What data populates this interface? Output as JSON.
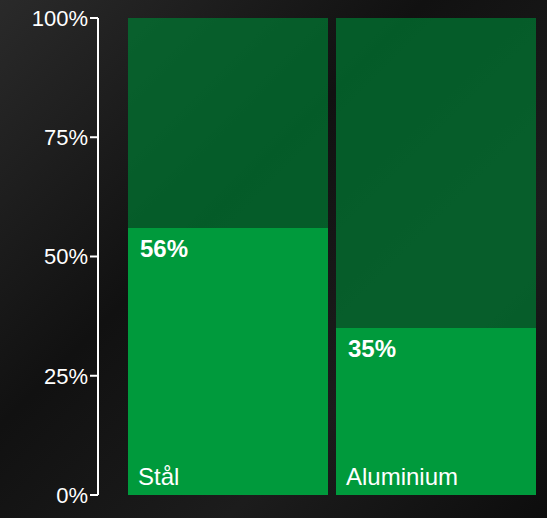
{
  "chart_data": {
    "type": "bar",
    "categories": [
      "Stål",
      "Aluminium"
    ],
    "values": [
      56,
      35
    ],
    "value_labels": [
      "56%",
      "35%"
    ],
    "color": "#009a3c",
    "ylim": [
      0,
      100
    ],
    "yticks": [
      {
        "value": 0,
        "label": "0%"
      },
      {
        "value": 25,
        "label": "25%"
      },
      {
        "value": 50,
        "label": "50%"
      },
      {
        "value": 75,
        "label": "75%"
      },
      {
        "value": 100,
        "label": "100%"
      }
    ],
    "grid": false,
    "data_labels": true
  }
}
